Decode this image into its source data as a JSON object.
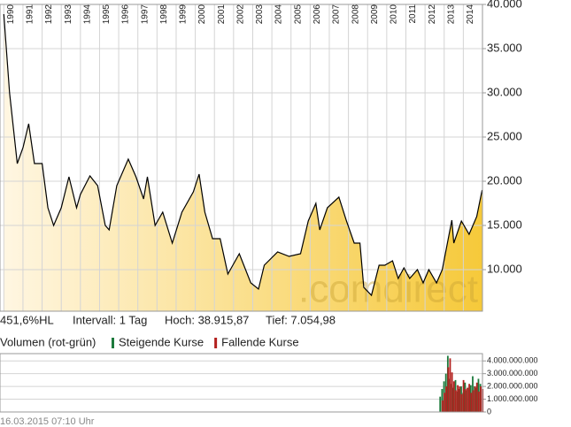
{
  "chart_data": [
    {
      "type": "area",
      "annotations": [
        "451,6%HL",
        "Intervall: 1 Tag",
        "Hoch: 38.915,87",
        "Tief: 7.054,98"
      ],
      "watermark": ".comdirect",
      "color": "#000000",
      "fill_gradient": [
        "#fff6e2",
        "#f6c93a"
      ],
      "grid": true,
      "x": [
        1990.0,
        1990.3,
        1990.7,
        1991.0,
        1991.3,
        1991.6,
        1992.0,
        1992.3,
        1992.6,
        1993.0,
        1993.4,
        1993.8,
        1994.0,
        1994.5,
        1994.9,
        1995.3,
        1995.5,
        1995.9,
        1996.5,
        1996.9,
        1997.3,
        1997.5,
        1997.9,
        1998.3,
        1998.8,
        1999.3,
        1999.9,
        2000.2,
        2000.5,
        2000.9,
        2001.3,
        2001.7,
        2002.3,
        2002.9,
        2003.3,
        2003.6,
        2004.3,
        2004.9,
        2005.5,
        2005.9,
        2006.3,
        2006.5,
        2006.9,
        2007.5,
        2007.9,
        2008.3,
        2008.6,
        2008.8,
        2009.2,
        2009.6,
        2009.9,
        2010.3,
        2010.6,
        2010.9,
        2011.2,
        2011.6,
        2011.9,
        2012.2,
        2012.6,
        2012.9,
        2013.4,
        2013.5,
        2013.9,
        2014.3,
        2014.7,
        2014.98
      ],
      "series": [
        {
          "values": [
            38900,
            30000,
            22000,
            23800,
            26500,
            22000,
            22000,
            17000,
            15000,
            17000,
            20500,
            17000,
            18500,
            20600,
            19500,
            15000,
            14500,
            19500,
            22500,
            20500,
            18000,
            20500,
            15000,
            16500,
            13000,
            16500,
            18800,
            20800,
            16500,
            13500,
            13500,
            9500,
            11800,
            8500,
            7800,
            10500,
            12000,
            11500,
            11800,
            15500,
            17500,
            14500,
            17000,
            18200,
            15500,
            13000,
            13000,
            8000,
            7100,
            10500,
            10500,
            11000,
            9000,
            10200,
            9000,
            10000,
            8500,
            10000,
            8500,
            10000,
            15600,
            13000,
            15500,
            14000,
            16000,
            19000
          ]
        }
      ],
      "xlim": [
        1989.8,
        2015.0
      ],
      "xticks": [
        1990,
        1991,
        1992,
        1993,
        1994,
        1995,
        1996,
        1997,
        1998,
        1999,
        2000,
        2001,
        2002,
        2003,
        2004,
        2005,
        2006,
        2007,
        2008,
        2009,
        2010,
        2011,
        2012,
        2013,
        2014
      ],
      "ylim": [
        5300,
        40000
      ],
      "yticks": [
        {
          "value": 10000,
          "label": "10.000"
        },
        {
          "value": 15000,
          "label": "15.000"
        },
        {
          "value": 20000,
          "label": "20.000"
        },
        {
          "value": 25000,
          "label": "25.000"
        },
        {
          "value": 30000,
          "label": "30.000"
        },
        {
          "value": 35000,
          "label": "35.000"
        },
        {
          "value": 40000,
          "label": "40.000"
        }
      ]
    },
    {
      "type": "bar",
      "title": "Volumen (rot-grün)",
      "footer": "16.03.2015 07:10 Uhr",
      "grid": true,
      "x": [
        2012.85,
        2012.95,
        2013.05,
        2013.15,
        2013.25,
        2013.35,
        2013.45,
        2013.55,
        2013.65,
        2013.75,
        2013.85,
        2013.95,
        2014.05,
        2014.15,
        2014.25,
        2014.35,
        2014.45,
        2014.55,
        2014.65,
        2014.75,
        2014.85,
        2014.95
      ],
      "series": [
        {
          "name": "Steigende Kurse",
          "color": "#1d7a3c",
          "values": [
            1200000000,
            1800000000,
            2400000000,
            3000000000,
            4400000000,
            2600000000,
            2200000000,
            1900000000,
            2500000000,
            1600000000,
            1800000000,
            2000000000,
            1500000000,
            2300000000,
            1700000000,
            1900000000,
            2100000000,
            2800000000,
            2000000000,
            1900000000,
            2600000000,
            2200000000
          ]
        },
        {
          "name": "Fallende Kurse",
          "color": "#b3201e",
          "values": [
            900000000,
            1500000000,
            2000000000,
            3500000000,
            4200000000,
            3100000000,
            2400000000,
            1700000000,
            2100000000,
            2000000000,
            1400000000,
            2500000000,
            1800000000,
            1900000000,
            2200000000,
            1500000000,
            1700000000,
            2000000000,
            2300000000,
            1600000000,
            2000000000,
            1800000000
          ]
        }
      ],
      "xlim": [
        1989.8,
        2015.0
      ],
      "ylim": [
        0,
        4570000000
      ],
      "yticks": [
        0,
        {
          "value": 1000000000,
          "label": "1.000.000.000"
        },
        {
          "value": 2000000000,
          "label": "2.000.000.000"
        },
        {
          "value": 3000000000,
          "label": "3.000.000.000"
        },
        {
          "value": 4000000000,
          "label": "4.000.000.000"
        }
      ]
    }
  ]
}
